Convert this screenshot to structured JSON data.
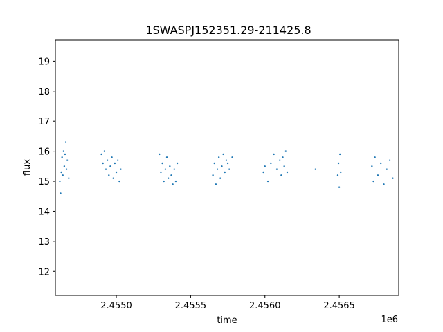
{
  "chart_data": {
    "type": "scatter",
    "title": "1SWASPJ152351.29-211425.8",
    "xlabel": "time",
    "ylabel": "flux",
    "x_offset_label": "1e6",
    "xlim": [
      2454590,
      2456900
    ],
    "ylim": [
      11.2,
      19.7
    ],
    "xticks": [
      2455000,
      2455500,
      2456000,
      2456500
    ],
    "xtick_labels": [
      "2.4550",
      "2.4555",
      "2.4560",
      "2.4565"
    ],
    "yticks": [
      12,
      13,
      14,
      15,
      16,
      17,
      18,
      19
    ],
    "ytick_labels": [
      "12",
      "13",
      "14",
      "15",
      "16",
      "17",
      "18",
      "19"
    ],
    "grid": false,
    "marker_color": "#1f77b4",
    "series": [
      {
        "x": [
          2454620,
          2454625,
          2454630,
          2454635,
          2454640,
          2454645,
          2454650,
          2454655,
          2454660,
          2454665,
          2454670,
          2454680,
          2454900,
          2454910,
          2454920,
          2454930,
          2454940,
          2454950,
          2454960,
          2454970,
          2454980,
          2454990,
          2455000,
          2455010,
          2455020,
          2455030,
          2455290,
          2455300,
          2455310,
          2455320,
          2455330,
          2455340,
          2455350,
          2455360,
          2455370,
          2455380,
          2455390,
          2455400,
          2455410,
          2455650,
          2455660,
          2455670,
          2455680,
          2455690,
          2455700,
          2455710,
          2455720,
          2455730,
          2455740,
          2455750,
          2455760,
          2455780,
          2455990,
          2456000,
          2456020,
          2456040,
          2456060,
          2456080,
          2456100,
          2456110,
          2456120,
          2456130,
          2456140,
          2456150,
          2456340,
          2456490,
          2456495,
          2456500,
          2456505,
          2456510,
          2456720,
          2456730,
          2456740,
          2456760,
          2456780,
          2456800,
          2456820,
          2456840,
          2456860
        ],
        "y": [
          15.0,
          14.6,
          15.3,
          15.8,
          15.2,
          16.0,
          15.5,
          15.9,
          16.3,
          15.4,
          15.7,
          15.1,
          15.9,
          15.6,
          16.0,
          15.4,
          15.7,
          15.2,
          15.5,
          15.8,
          15.1,
          15.6,
          15.3,
          15.7,
          15.0,
          15.4,
          15.9,
          15.3,
          15.6,
          15.0,
          15.4,
          15.8,
          15.1,
          15.5,
          15.2,
          14.9,
          15.4,
          15.0,
          15.6,
          15.2,
          15.6,
          14.9,
          15.4,
          15.8,
          15.1,
          15.5,
          15.9,
          15.3,
          15.7,
          15.6,
          15.4,
          15.8,
          15.3,
          15.5,
          15.0,
          15.6,
          15.9,
          15.4,
          15.7,
          15.2,
          15.8,
          15.5,
          16.0,
          15.3,
          15.4,
          15.2,
          15.6,
          14.8,
          15.9,
          15.3,
          15.5,
          15.0,
          15.8,
          15.2,
          15.6,
          14.9,
          15.4,
          15.7,
          15.1
        ]
      }
    ]
  }
}
